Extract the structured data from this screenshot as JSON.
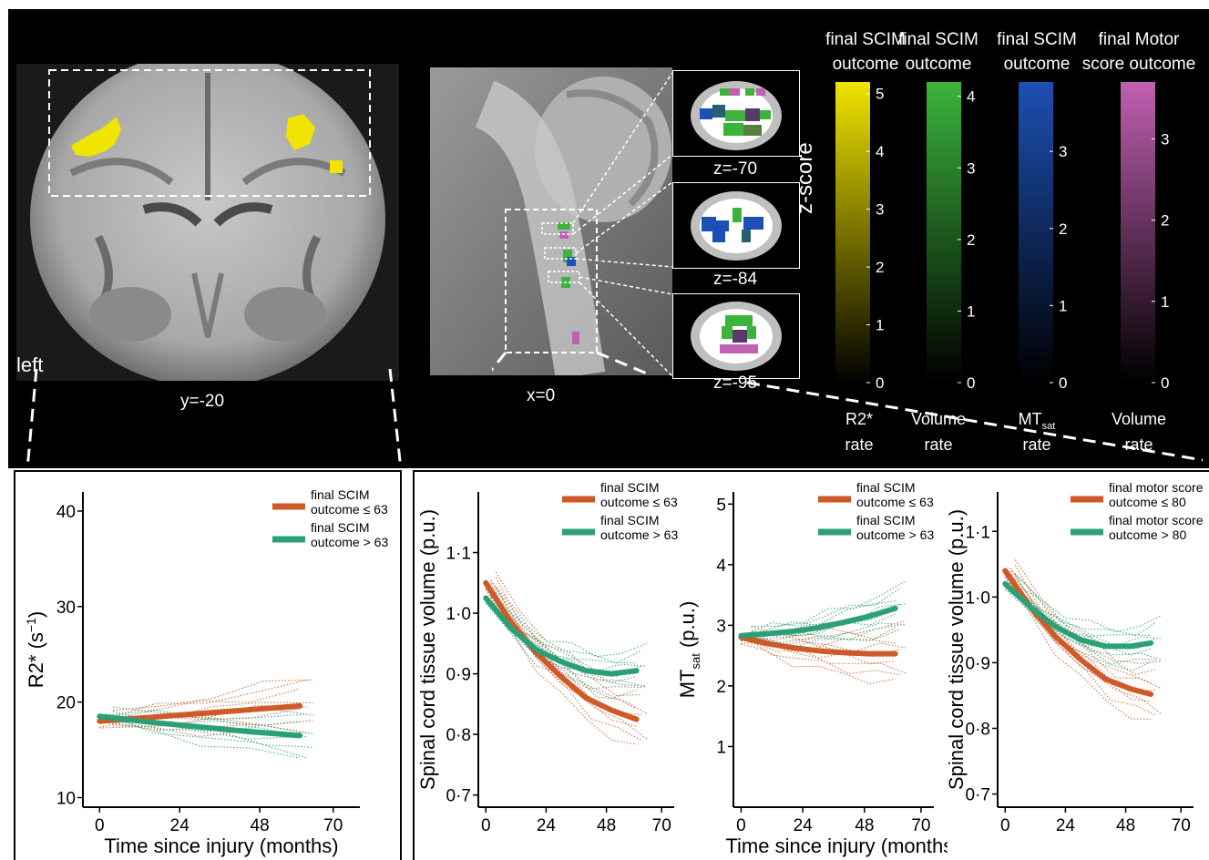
{
  "top": {
    "coronal_label": "y=-20",
    "left_label": "left",
    "sagittal_label": "x=0",
    "axial_labels": [
      "z=-70",
      "z=-84",
      "z=-95"
    ],
    "zscore_label": "z-score",
    "colorbars": [
      {
        "title_lines": [
          "final SCIM",
          "outcome"
        ],
        "ticks": [
          "5",
          "4",
          "3",
          "2",
          "1",
          "0"
        ],
        "max": 5.2,
        "foot_lines": [
          "R2*",
          "rate"
        ],
        "color": "#f0e400"
      },
      {
        "title_lines": [
          "final SCIM",
          "outcome"
        ],
        "ticks": [
          "4",
          "3",
          "2",
          "1",
          "0"
        ],
        "max": 4.2,
        "foot_lines": [
          "Volume",
          "rate"
        ],
        "color": "#3cb43c"
      },
      {
        "title_lines": [
          "final SCIM",
          "outcome"
        ],
        "ticks": [
          "3",
          "2",
          "1",
          "0"
        ],
        "max": 3.9,
        "foot_lines": [
          "MT",
          "rate"
        ],
        "foot_sub": "sat",
        "color": "#1c50b4"
      },
      {
        "title_lines": [
          "final Motor",
          "score outcome"
        ],
        "ticks": [
          "3",
          "2",
          "1",
          "0"
        ],
        "max": 3.7,
        "foot_lines": [
          "Volume",
          "rate"
        ],
        "color": "#c060b0"
      }
    ]
  },
  "colors": {
    "low": "#cf5a28",
    "high": "#2ba078"
  },
  "chart_data": [
    {
      "type": "line",
      "xlabel": "Time since injury (months)",
      "ylabel": "R2* (s",
      "ylabel_sup": "−1",
      "ylabel_close": ")",
      "xticks": [
        "0",
        "24",
        "48",
        "70"
      ],
      "yticks": [
        "10",
        "20",
        "30",
        "40"
      ],
      "xlim": [
        -5,
        78
      ],
      "ylim": [
        9,
        42
      ],
      "legend": [
        "final SCIM\noutcome ≤ 63",
        "final SCIM\noutcome > 63"
      ],
      "series": [
        {
          "name": "final SCIM outcome ≤ 63",
          "color_key": "low",
          "x": [
            0,
            15,
            30,
            45,
            60
          ],
          "y": [
            18.0,
            18.4,
            18.8,
            19.2,
            19.6
          ]
        },
        {
          "name": "final SCIM outcome > 63",
          "color_key": "high",
          "x": [
            0,
            15,
            30,
            45,
            60
          ],
          "y": [
            18.5,
            17.9,
            17.4,
            16.9,
            16.5
          ]
        }
      ]
    },
    {
      "type": "line",
      "xlabel": "",
      "ylabel": "Spinal cord tissue volume (p.u.)",
      "xticks": [
        "0",
        "24",
        "48",
        "70"
      ],
      "yticks": [
        "0·7",
        "0·8",
        "0·9",
        "1·0",
        "1·1"
      ],
      "xlim": [
        -3,
        75
      ],
      "ylim": [
        0.68,
        1.2
      ],
      "legend": [
        "final SCIM\noutcome ≤ 63",
        "final SCIM\noutcome > 63"
      ],
      "series": [
        {
          "name": "final SCIM outcome ≤ 63",
          "color_key": "low",
          "x": [
            0,
            10,
            20,
            30,
            40,
            50,
            60
          ],
          "y": [
            1.05,
            0.985,
            0.935,
            0.895,
            0.86,
            0.84,
            0.825
          ]
        },
        {
          "name": "final SCIM outcome > 63",
          "color_key": "high",
          "x": [
            0,
            10,
            20,
            30,
            40,
            50,
            60
          ],
          "y": [
            1.025,
            0.975,
            0.94,
            0.92,
            0.905,
            0.9,
            0.905
          ]
        }
      ]
    },
    {
      "type": "line",
      "xlabel": "Time since injury (months)",
      "ylabel": "MT",
      "ylabel_sub": "sat",
      "ylabel_close": " (p.u.)",
      "xticks": [
        "0",
        "24",
        "48",
        "70"
      ],
      "yticks": [
        "1",
        "2",
        "3",
        "4",
        "5"
      ],
      "xlim": [
        -3,
        75
      ],
      "ylim": [
        0,
        5.2
      ],
      "legend": [
        "final SCIM\noutcome ≤ 63",
        "final SCIM\noutcome > 63"
      ],
      "series": [
        {
          "name": "final SCIM outcome ≤ 63",
          "color_key": "low",
          "x": [
            0,
            10,
            20,
            30,
            40,
            50,
            60
          ],
          "y": [
            2.8,
            2.7,
            2.63,
            2.58,
            2.55,
            2.53,
            2.53
          ]
        },
        {
          "name": "final SCIM outcome > 63",
          "color_key": "high",
          "x": [
            0,
            10,
            20,
            30,
            40,
            50,
            60
          ],
          "y": [
            2.83,
            2.86,
            2.9,
            2.96,
            3.05,
            3.15,
            3.28
          ]
        }
      ]
    },
    {
      "type": "line",
      "xlabel": "",
      "ylabel": "Spinal cord tissue volume (p.u.)",
      "xticks": [
        "0",
        "24",
        "48",
        "70"
      ],
      "yticks": [
        "0·7",
        "0·8",
        "0·9",
        "1·0",
        "1·1"
      ],
      "xlim": [
        -3,
        75
      ],
      "ylim": [
        0.68,
        1.16
      ],
      "legend": [
        "final motor score\noutcome ≤ 80",
        "final motor score\noutcome > 80"
      ],
      "series": [
        {
          "name": "final motor score outcome ≤ 80",
          "color_key": "low",
          "x": [
            0,
            10,
            20,
            30,
            40,
            50,
            58
          ],
          "y": [
            1.04,
            0.985,
            0.94,
            0.905,
            0.875,
            0.86,
            0.852
          ]
        },
        {
          "name": "final motor score outcome > 80",
          "color_key": "high",
          "x": [
            0,
            10,
            20,
            30,
            40,
            50,
            58
          ],
          "y": [
            1.02,
            0.985,
            0.955,
            0.935,
            0.925,
            0.925,
            0.93
          ]
        }
      ]
    }
  ]
}
